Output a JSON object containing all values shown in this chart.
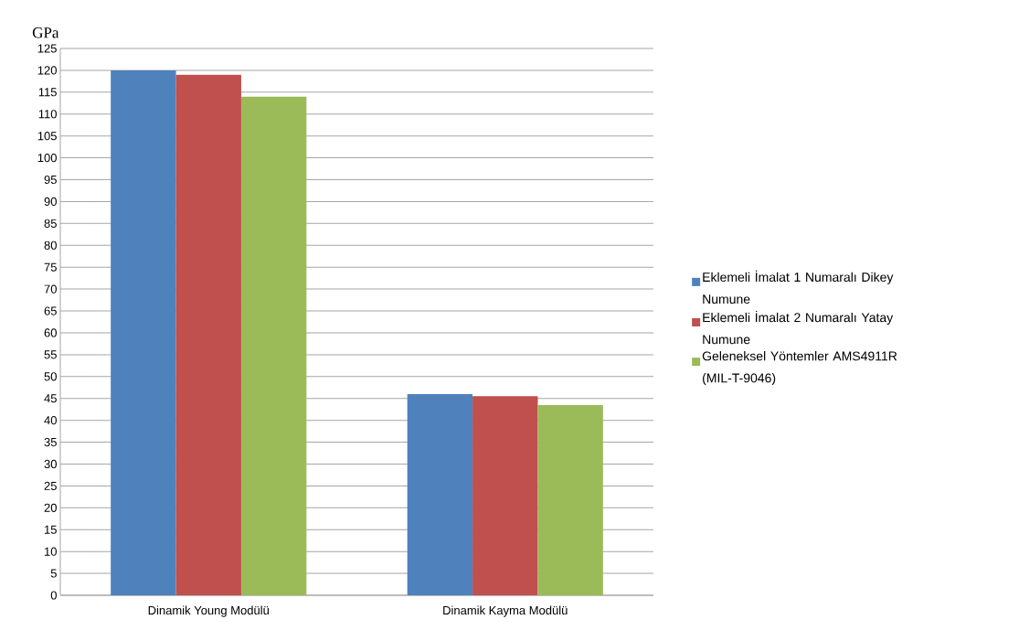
{
  "chart_data": {
    "type": "bar",
    "ylabel": "GPa",
    "categories": [
      "Dinamik Young Modülü",
      "Dinamik Kayma Modülü"
    ],
    "series": [
      {
        "name": "Eklemeli İmalat 1 Numaralı Dikey Numune",
        "color": "#4f81bd",
        "values": [
          120,
          46
        ]
      },
      {
        "name": "Eklemeli İmalat 2 Numaralı Yatay Numune",
        "color": "#c0504d",
        "values": [
          119,
          45.5
        ]
      },
      {
        "name": "Geleneksel Yöntemler  AMS4911R (MIL-T-9046)",
        "color": "#9bbb59",
        "values": [
          114,
          43.5
        ]
      }
    ],
    "ylim": [
      0,
      125
    ],
    "yticks": [
      0,
      5,
      10,
      15,
      20,
      25,
      30,
      35,
      40,
      45,
      50,
      55,
      60,
      65,
      70,
      75,
      80,
      85,
      90,
      95,
      100,
      105,
      110,
      115,
      120,
      125
    ],
    "grid": "y",
    "legend": "right"
  }
}
